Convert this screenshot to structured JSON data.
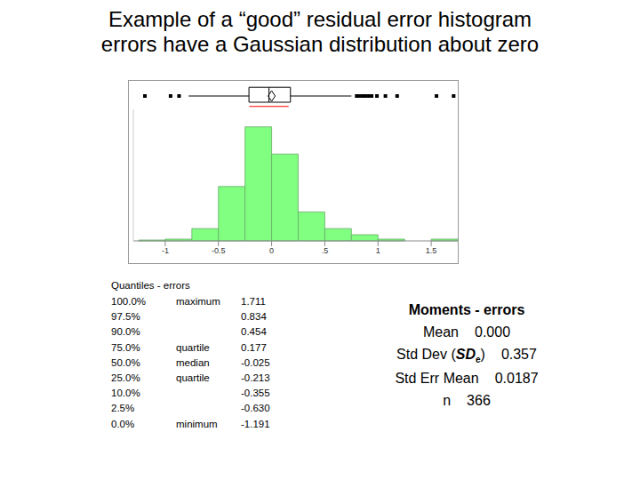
{
  "title": [
    "Example of a “good” residual error histogram",
    "errors have a Gaussian distribution about zero"
  ],
  "chart_data": {
    "type": "histogram",
    "bins": [
      -1.25,
      -1,
      -0.75,
      -0.5,
      -0.25,
      0,
      0.25,
      0.5,
      0.75,
      1,
      1.25,
      1.5,
      1.75
    ],
    "counts": [
      1,
      2,
      14,
      62,
      130,
      99,
      33,
      14,
      7,
      2,
      0,
      2
    ],
    "color": "#80ff80",
    "xlim": [
      -1.3,
      1.75
    ],
    "xticks": [
      -1,
      -0.5,
      0,
      {
        "value": 0.5,
        "label": ".5"
      },
      1,
      1.5
    ],
    "ylim": [
      0,
      150
    ],
    "tick_labels": "x",
    "box_plot": {
      "whiskers": [
        -0.78,
        0.75
      ],
      "outliers": [
        -1.191,
        -0.95,
        -0.87,
        0.8,
        0.83,
        0.86,
        0.88,
        0.91,
        0.94,
        0.99,
        1.07,
        1.18,
        1.55,
        1.711
      ],
      "shortest_half": [
        -0.21,
        0.16
      ],
      "color": "#ff0000"
    }
  },
  "quantiles": {
    "title": "Quantiles - errors",
    "rows": [
      [
        "100.0%",
        "maximum",
        "1.711"
      ],
      [
        "97.5%",
        null,
        "0.834"
      ],
      [
        "90.0%",
        null,
        "0.454"
      ],
      [
        "75.0%",
        "quartile",
        "0.177"
      ],
      [
        "50.0%",
        "median",
        "-0.025"
      ],
      [
        "25.0%",
        "quartile",
        "-0.213"
      ],
      [
        "10.0%",
        null,
        "-0.355"
      ],
      [
        "2.5%",
        null,
        "-0.630"
      ],
      [
        "0.0%",
        "minimum",
        "-1.191"
      ]
    ]
  },
  "moments": {
    "title": "Moments - errors",
    "rows": [
      {
        "label": "Mean",
        "value": "0.000"
      },
      {
        "label": "Std Dev (",
        "symbol": "SD",
        "subscript": "e",
        "label_end": ")",
        "value": "0.357"
      },
      {
        "label": "Std Err Mean",
        "value": "0.0187"
      },
      {
        "label": "n",
        "value": "366"
      }
    ]
  }
}
